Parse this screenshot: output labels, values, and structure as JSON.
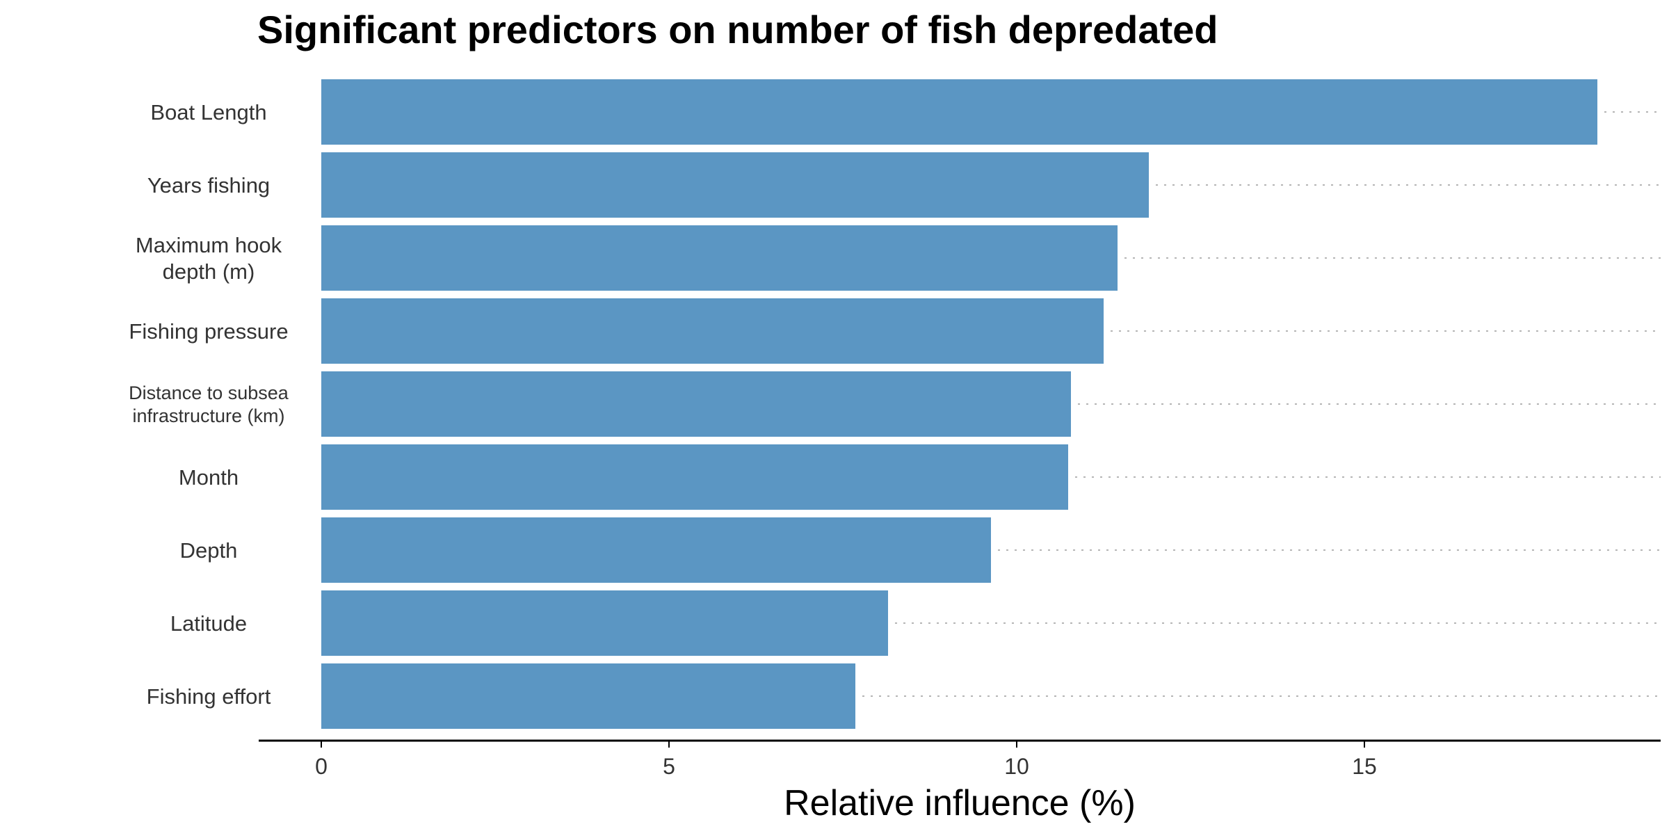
{
  "chart_data": {
    "type": "bar",
    "orientation": "horizontal",
    "title": "Significant predictors on number of fish depredated",
    "xlabel": "Relative influence (%)",
    "ylabel": "",
    "categories": [
      "Boat Length",
      "Years fishing",
      "Maximum hook depth (m)",
      "Fishing pressure",
      "Distance to subsea infrastructure (km)",
      "Month",
      "Depth",
      "Latitude",
      "Fishing effort"
    ],
    "category_lines": [
      [
        "Boat Length"
      ],
      [
        "Years fishing"
      ],
      [
        "Maximum hook",
        "depth (m)"
      ],
      [
        "Fishing pressure"
      ],
      [
        "Distance to subsea",
        "infrastructure (km)"
      ],
      [
        "Month"
      ],
      [
        "Depth"
      ],
      [
        "Latitude"
      ],
      [
        "Fishing effort"
      ]
    ],
    "values": [
      18.35,
      11.9,
      11.45,
      11.25,
      10.78,
      10.74,
      9.63,
      8.15,
      7.68
    ],
    "xlim": [
      -0.9,
      19.25
    ],
    "xticks": [
      0,
      5,
      10,
      15
    ],
    "grid": "dotted guide lines to the right of each bar",
    "legend": "none",
    "bar_color": "#5b96c3",
    "axis_color": "#000000",
    "guide_color": "#b5b5b5",
    "label_color": "#333333"
  }
}
